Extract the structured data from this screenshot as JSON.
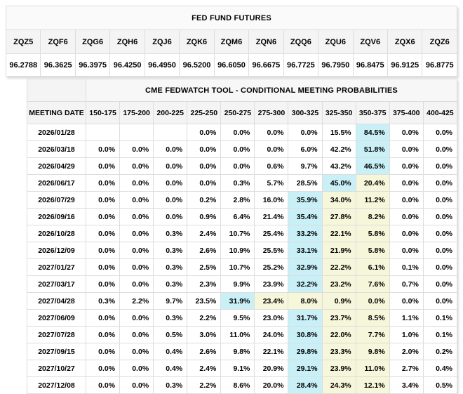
{
  "fed_fund_futures": {
    "title": "FED FUND FUTURES",
    "contracts": [
      "ZQZ5",
      "ZQF6",
      "ZQG6",
      "ZQH6",
      "ZQJ6",
      "ZQK6",
      "ZQM6",
      "ZQN6",
      "ZQQ6",
      "ZQU6",
      "ZQV6",
      "ZQX6",
      "ZQZ6"
    ],
    "prices": [
      "96.2788",
      "96.3625",
      "96.3975",
      "96.4250",
      "96.4950",
      "96.5200",
      "96.6050",
      "96.6675",
      "96.7725",
      "96.7950",
      "96.8475",
      "96.9125",
      "96.8775"
    ]
  },
  "fedwatch": {
    "title": "CME FEDWATCH TOOL - CONDITIONAL MEETING PROBABILITIES",
    "date_column_header": "MEETING DATE",
    "rate_columns": [
      "150-175",
      "175-200",
      "200-225",
      "225-250",
      "250-275",
      "275-300",
      "300-325",
      "325-350",
      "350-375",
      "375-400",
      "400-425"
    ],
    "highlight_colors": {
      "cyan": "#c9f0f7",
      "yellow": "#f6f6da"
    },
    "rows": [
      {
        "date": "2026/01/28",
        "cells": [
          "",
          "",
          "",
          "0.0%",
          "0.0%",
          "0.0%",
          "0.0%",
          "15.5%",
          "84.5%",
          "0.0%",
          "0.0%"
        ],
        "hl": [
          "",
          "",
          "",
          "",
          "",
          "",
          "",
          "",
          "cyan",
          "",
          ""
        ]
      },
      {
        "date": "2026/03/18",
        "cells": [
          "0.0%",
          "0.0%",
          "0.0%",
          "0.0%",
          "0.0%",
          "0.0%",
          "6.0%",
          "42.2%",
          "51.8%",
          "0.0%",
          "0.0%"
        ],
        "hl": [
          "",
          "",
          "",
          "",
          "",
          "",
          "",
          "",
          "cyan",
          "",
          ""
        ]
      },
      {
        "date": "2026/04/29",
        "cells": [
          "0.0%",
          "0.0%",
          "0.0%",
          "0.0%",
          "0.0%",
          "0.6%",
          "9.7%",
          "43.2%",
          "46.5%",
          "0.0%",
          "0.0%"
        ],
        "hl": [
          "",
          "",
          "",
          "",
          "",
          "",
          "",
          "",
          "cyan",
          "",
          ""
        ]
      },
      {
        "date": "2026/06/17",
        "cells": [
          "0.0%",
          "0.0%",
          "0.0%",
          "0.0%",
          "0.3%",
          "5.7%",
          "28.5%",
          "45.0%",
          "20.4%",
          "0.0%",
          "0.0%"
        ],
        "hl": [
          "",
          "",
          "",
          "",
          "",
          "",
          "",
          "cyan",
          "yellow",
          "",
          ""
        ]
      },
      {
        "date": "2026/07/29",
        "cells": [
          "0.0%",
          "0.0%",
          "0.0%",
          "0.2%",
          "2.8%",
          "16.0%",
          "35.9%",
          "34.0%",
          "11.2%",
          "0.0%",
          "0.0%"
        ],
        "hl": [
          "",
          "",
          "",
          "",
          "",
          "",
          "cyan",
          "yellow",
          "yellow",
          "",
          ""
        ]
      },
      {
        "date": "2026/09/16",
        "cells": [
          "0.0%",
          "0.0%",
          "0.0%",
          "0.9%",
          "6.4%",
          "21.4%",
          "35.4%",
          "27.8%",
          "8.2%",
          "0.0%",
          "0.0%"
        ],
        "hl": [
          "",
          "",
          "",
          "",
          "",
          "",
          "cyan",
          "yellow",
          "yellow",
          "",
          ""
        ]
      },
      {
        "date": "2026/10/28",
        "cells": [
          "0.0%",
          "0.0%",
          "0.3%",
          "2.4%",
          "10.7%",
          "25.4%",
          "33.2%",
          "22.1%",
          "5.8%",
          "0.0%",
          "0.0%"
        ],
        "hl": [
          "",
          "",
          "",
          "",
          "",
          "",
          "cyan",
          "yellow",
          "yellow",
          "",
          ""
        ]
      },
      {
        "date": "2026/12/09",
        "cells": [
          "0.0%",
          "0.0%",
          "0.3%",
          "2.6%",
          "10.9%",
          "25.5%",
          "33.1%",
          "21.9%",
          "5.8%",
          "0.0%",
          "0.0%"
        ],
        "hl": [
          "",
          "",
          "",
          "",
          "",
          "",
          "cyan",
          "yellow",
          "yellow",
          "",
          ""
        ]
      },
      {
        "date": "2027/01/27",
        "cells": [
          "0.0%",
          "0.0%",
          "0.3%",
          "2.5%",
          "10.7%",
          "25.2%",
          "32.9%",
          "22.2%",
          "6.1%",
          "0.1%",
          "0.0%"
        ],
        "hl": [
          "",
          "",
          "",
          "",
          "",
          "",
          "cyan",
          "yellow",
          "yellow",
          "",
          ""
        ]
      },
      {
        "date": "2027/03/17",
        "cells": [
          "0.0%",
          "0.0%",
          "0.3%",
          "2.3%",
          "9.9%",
          "23.9%",
          "32.2%",
          "23.2%",
          "7.6%",
          "0.7%",
          "0.0%"
        ],
        "hl": [
          "",
          "",
          "",
          "",
          "",
          "",
          "cyan",
          "yellow",
          "yellow",
          "",
          ""
        ]
      },
      {
        "date": "2027/04/28",
        "cells": [
          "0.3%",
          "2.2%",
          "9.7%",
          "23.5%",
          "31.9%",
          "23.4%",
          "8.0%",
          "0.9%",
          "0.0%",
          "0.0%",
          "0.0%"
        ],
        "hl": [
          "",
          "",
          "",
          "",
          "cyan",
          "yellow",
          "yellow",
          "yellow",
          "yellow",
          "",
          ""
        ]
      },
      {
        "date": "2027/06/09",
        "cells": [
          "0.0%",
          "0.0%",
          "0.3%",
          "2.2%",
          "9.5%",
          "23.0%",
          "31.7%",
          "23.7%",
          "8.5%",
          "1.1%",
          "0.1%"
        ],
        "hl": [
          "",
          "",
          "",
          "",
          "",
          "",
          "cyan",
          "yellow",
          "yellow",
          "",
          ""
        ]
      },
      {
        "date": "2027/07/28",
        "cells": [
          "0.0%",
          "0.0%",
          "0.5%",
          "3.0%",
          "11.0%",
          "24.0%",
          "30.8%",
          "22.0%",
          "7.7%",
          "1.0%",
          "0.1%"
        ],
        "hl": [
          "",
          "",
          "",
          "",
          "",
          "",
          "cyan",
          "yellow",
          "yellow",
          "",
          ""
        ]
      },
      {
        "date": "2027/09/15",
        "cells": [
          "0.0%",
          "0.0%",
          "0.4%",
          "2.6%",
          "9.8%",
          "22.1%",
          "29.8%",
          "23.3%",
          "9.8%",
          "2.0%",
          "0.2%"
        ],
        "hl": [
          "",
          "",
          "",
          "",
          "",
          "",
          "cyan",
          "yellow",
          "yellow",
          "",
          ""
        ]
      },
      {
        "date": "2027/10/27",
        "cells": [
          "0.0%",
          "0.0%",
          "0.4%",
          "2.4%",
          "9.1%",
          "20.9%",
          "29.1%",
          "23.9%",
          "11.0%",
          "2.7%",
          "0.4%"
        ],
        "hl": [
          "",
          "",
          "",
          "",
          "",
          "",
          "cyan",
          "yellow",
          "yellow",
          "",
          ""
        ]
      },
      {
        "date": "2027/12/08",
        "cells": [
          "0.0%",
          "0.0%",
          "0.3%",
          "2.2%",
          "8.6%",
          "20.0%",
          "28.4%",
          "24.3%",
          "12.1%",
          "3.4%",
          "0.5%"
        ],
        "hl": [
          "",
          "",
          "",
          "",
          "",
          "",
          "cyan",
          "yellow",
          "yellow",
          "",
          ""
        ]
      }
    ]
  }
}
